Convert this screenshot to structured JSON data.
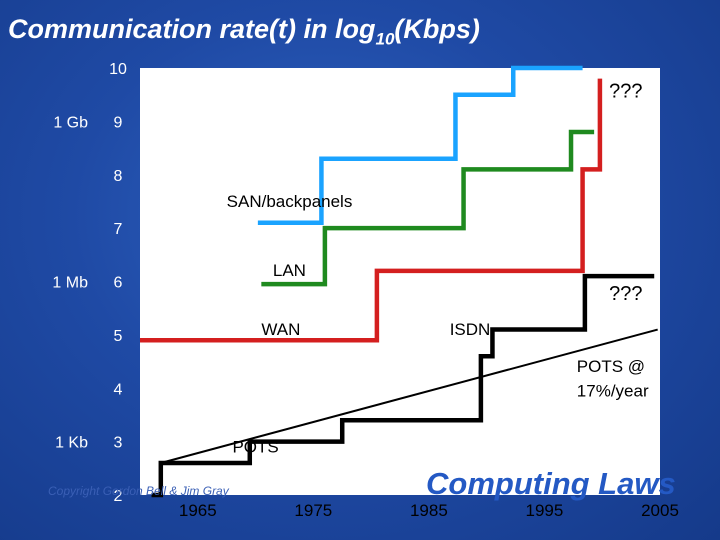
{
  "title_main": "Communication rate(t) in log",
  "title_sub": "10",
  "title_end": "(Kbps)",
  "copyright": "Copyright Gordon Bell & Jim Gray",
  "brand": "Computing Laws",
  "chart_data": {
    "type": "line",
    "xlim": [
      1960,
      2005
    ],
    "ylim": [
      2,
      10
    ],
    "x_ticks": [
      "1965",
      "1975",
      "1985",
      "1995",
      "2005"
    ],
    "y_ticks": [
      "10",
      "9",
      "8",
      "7",
      "6",
      "5",
      "4",
      "3",
      "2"
    ],
    "side_labels": [
      {
        "text": "1 Gb",
        "y": 9
      },
      {
        "text": "1 Mb",
        "y": 6
      },
      {
        "text": "1 Kb",
        "y": 3
      }
    ],
    "series": [
      {
        "color": "#1aa3ff",
        "points": [
          [
            1970.2,
            7.1
          ],
          [
            1975.7,
            7.1
          ],
          [
            1975.7,
            8.3
          ],
          [
            1987.3,
            8.3
          ],
          [
            1987.3,
            9.5
          ],
          [
            1992.3,
            9.5
          ],
          [
            1992.3,
            10.0
          ],
          [
            1998.3,
            10.0
          ]
        ]
      },
      {
        "color": "#1f8a1f",
        "points": [
          [
            1970.5,
            5.95
          ],
          [
            1976.0,
            5.95
          ],
          [
            1976.0,
            7.0
          ],
          [
            1988.0,
            7.0
          ],
          [
            1988.0,
            8.1
          ],
          [
            1997.3,
            8.1
          ],
          [
            1997.3,
            8.8
          ],
          [
            1999.3,
            8.8
          ]
        ]
      },
      {
        "color": "#d41f1f",
        "points": [
          [
            1960.0,
            4.9
          ],
          [
            1980.5,
            4.9
          ],
          [
            1980.5,
            6.2
          ],
          [
            1998.3,
            6.2
          ],
          [
            1998.3,
            8.1
          ],
          [
            1999.8,
            8.1
          ],
          [
            1999.8,
            9.8
          ]
        ]
      },
      {
        "color": "#000000",
        "points": [
          [
            1961.0,
            2.0
          ],
          [
            1961.8,
            2.0
          ],
          [
            1961.8,
            2.6
          ],
          [
            1969.5,
            2.6
          ],
          [
            1969.5,
            3.0
          ],
          [
            1977.5,
            3.0
          ],
          [
            1977.5,
            3.4
          ],
          [
            1989.5,
            3.4
          ],
          [
            1989.5,
            4.6
          ],
          [
            1990.5,
            4.6
          ],
          [
            1990.5,
            5.1
          ],
          [
            1998.5,
            5.1
          ],
          [
            1998.5,
            6.1
          ],
          [
            2004.5,
            6.1
          ]
        ]
      },
      {
        "color": "#000000",
        "points": [
          [
            1961.8,
            2.6
          ],
          [
            2004.8,
            5.1
          ]
        ]
      }
    ],
    "labels": [
      {
        "text": "SAN/backpanels",
        "x": 1967.5,
        "y": 7.4,
        "class": "lbl"
      },
      {
        "text": "LAN",
        "x": 1971.5,
        "y": 6.1,
        "class": "lbl"
      },
      {
        "text": "WAN",
        "x": 1970.5,
        "y": 5.0,
        "class": "lbl"
      },
      {
        "text": "ISDN",
        "x": 1986.8,
        "y": 5.0,
        "class": "lbl"
      },
      {
        "text": "POTS",
        "x": 1968.0,
        "y": 2.8,
        "class": "lbl"
      },
      {
        "text": "???",
        "x": 2000.6,
        "y": 9.45,
        "class": "qq"
      },
      {
        "text": "???",
        "x": 2000.6,
        "y": 5.65,
        "class": "qq"
      },
      {
        "text": "POTS @",
        "x": 1997.8,
        "y": 4.3,
        "class": "lbl"
      },
      {
        "text": "17%/year",
        "x": 1997.8,
        "y": 3.85,
        "class": "lbl"
      }
    ]
  }
}
